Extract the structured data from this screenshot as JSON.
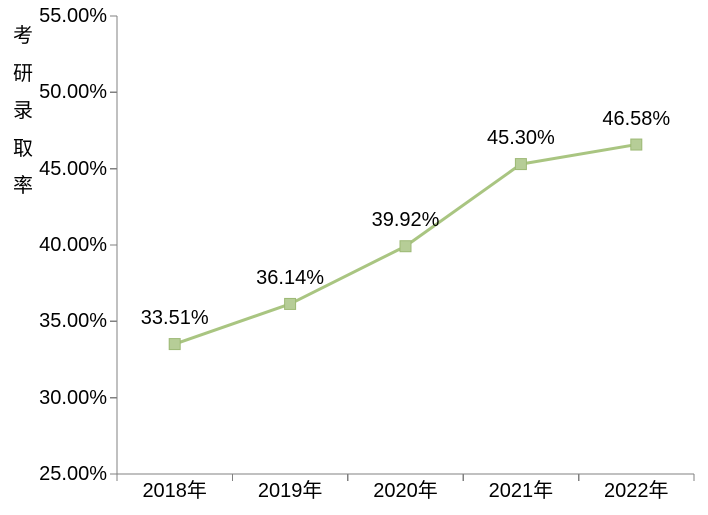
{
  "chart_data": {
    "type": "line",
    "title": "",
    "ylabel": "考研录取率",
    "xlabel": "",
    "categories": [
      "2018年",
      "2019年",
      "2020年",
      "2021年",
      "2022年"
    ],
    "series": [
      {
        "name": "考研录取率",
        "values": [
          33.51,
          36.14,
          39.92,
          45.3,
          46.58
        ],
        "data_labels": [
          "33.51%",
          "36.14%",
          "39.92%",
          "45.30%",
          "46.58%"
        ]
      }
    ],
    "ylim": [
      25,
      55
    ],
    "y_tick_step": 5,
    "y_ticks": [
      25,
      30,
      35,
      40,
      45,
      50,
      55
    ],
    "y_tick_labels": [
      "25.00%",
      "30.00%",
      "35.00%",
      "40.00%",
      "45.00%",
      "50.00%",
      "55.00%"
    ],
    "grid": "off",
    "legend": "none",
    "data_label_position": "above",
    "colors": {
      "line": "#A9C581",
      "marker_fill": "#B6CD97",
      "marker_border": "#9DB975",
      "axis": "#808080",
      "text": "#000000",
      "background": "#FFFFFF"
    }
  }
}
